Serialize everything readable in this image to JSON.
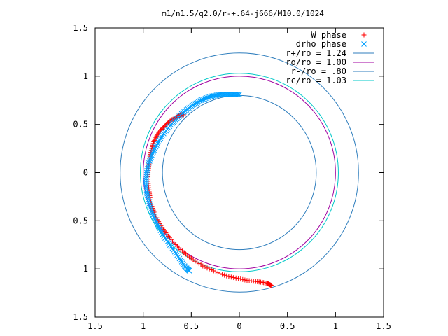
{
  "chart_data": {
    "type": "scatter",
    "title": "m1/n1.5/q2.0/r-+.64-j666/M10.0/1024",
    "xlim": [
      -1.5,
      1.5
    ],
    "ylim": [
      -1.5,
      1.5
    ],
    "x_ticks": [
      -1.5,
      -1,
      -0.5,
      0,
      0.5,
      1,
      1.5
    ],
    "x_tick_labels": [
      "1.5",
      "1",
      "0.5",
      "0",
      "0.5",
      "1",
      "1.5"
    ],
    "y_ticks": [
      1.5,
      1,
      0.5,
      0,
      -0.5,
      -1,
      -1.5
    ],
    "y_tick_labels": [
      "1.5",
      "1",
      "0.5",
      "0",
      "0.5",
      "1",
      "1.5"
    ],
    "grid": false,
    "legend_position": "top-right",
    "series": [
      {
        "name": "W phase",
        "kind": "scatter",
        "marker": "+",
        "color": "#ff0000",
        "points": [
          [
            -0.58,
            0.6
          ],
          [
            -0.6,
            0.6
          ],
          [
            -0.63,
            0.59
          ],
          [
            -0.66,
            0.57
          ],
          [
            -0.7,
            0.55
          ],
          [
            -0.74,
            0.52
          ],
          [
            -0.78,
            0.48
          ],
          [
            -0.82,
            0.44
          ],
          [
            -0.86,
            0.38
          ],
          [
            -0.89,
            0.32
          ],
          [
            -0.91,
            0.25
          ],
          [
            -0.93,
            0.17
          ],
          [
            -0.94,
            0.09
          ],
          [
            -0.95,
            0.0
          ],
          [
            -0.95,
            -0.09
          ],
          [
            -0.94,
            -0.18
          ],
          [
            -0.93,
            -0.26
          ],
          [
            -0.91,
            -0.35
          ],
          [
            -0.88,
            -0.43
          ],
          [
            -0.84,
            -0.51
          ],
          [
            -0.79,
            -0.59
          ],
          [
            -0.74,
            -0.66
          ],
          [
            -0.68,
            -0.73
          ],
          [
            -0.61,
            -0.8
          ],
          [
            -0.54,
            -0.86
          ],
          [
            -0.46,
            -0.92
          ],
          [
            -0.38,
            -0.97
          ],
          [
            -0.29,
            -1.01
          ],
          [
            -0.2,
            -1.05
          ],
          [
            -0.11,
            -1.08
          ],
          [
            -0.01,
            -1.1
          ],
          [
            0.08,
            -1.12
          ],
          [
            0.17,
            -1.13
          ],
          [
            0.24,
            -1.14
          ],
          [
            0.29,
            -1.15
          ],
          [
            0.31,
            -1.16
          ],
          [
            0.33,
            -1.17
          ]
        ]
      },
      {
        "name": "drho phase",
        "kind": "scatter",
        "marker": "x",
        "color": "#00a0ff",
        "points": [
          [
            0.0,
            0.81
          ],
          [
            -0.05,
            0.81
          ],
          [
            -0.1,
            0.81
          ],
          [
            -0.15,
            0.81
          ],
          [
            -0.2,
            0.81
          ],
          [
            -0.25,
            0.8
          ],
          [
            -0.3,
            0.79
          ],
          [
            -0.35,
            0.77
          ],
          [
            -0.4,
            0.75
          ],
          [
            -0.45,
            0.72
          ],
          [
            -0.5,
            0.69
          ],
          [
            -0.55,
            0.65
          ],
          [
            -0.6,
            0.61
          ],
          [
            -0.65,
            0.56
          ],
          [
            -0.7,
            0.51
          ],
          [
            -0.75,
            0.45
          ],
          [
            -0.8,
            0.39
          ],
          [
            -0.84,
            0.32
          ],
          [
            -0.88,
            0.25
          ],
          [
            -0.91,
            0.18
          ],
          [
            -0.94,
            0.1
          ],
          [
            -0.96,
            0.02
          ],
          [
            -0.97,
            -0.06
          ],
          [
            -0.97,
            -0.14
          ],
          [
            -0.96,
            -0.22
          ],
          [
            -0.94,
            -0.3
          ],
          [
            -0.92,
            -0.38
          ],
          [
            -0.89,
            -0.46
          ],
          [
            -0.85,
            -0.54
          ],
          [
            -0.81,
            -0.62
          ],
          [
            -0.76,
            -0.7
          ],
          [
            -0.71,
            -0.77
          ],
          [
            -0.66,
            -0.84
          ],
          [
            -0.61,
            -0.91
          ],
          [
            -0.57,
            -0.97
          ],
          [
            -0.54,
            -1.0
          ],
          [
            -0.52,
            -1.02
          ]
        ]
      },
      {
        "name": "r+/ro = 1.24",
        "kind": "circle",
        "radius": 1.24,
        "color": "#2f7ebd"
      },
      {
        "name": "ro/ro = 1.00",
        "kind": "circle",
        "radius": 1.0,
        "color": "#a000a0"
      },
      {
        "name": "r-/ro = .80",
        "kind": "circle",
        "radius": 0.8,
        "color": "#2f7ebd"
      },
      {
        "name": "rc/ro = 1.03",
        "kind": "circle",
        "radius": 1.03,
        "color": "#00c8c8"
      }
    ]
  }
}
